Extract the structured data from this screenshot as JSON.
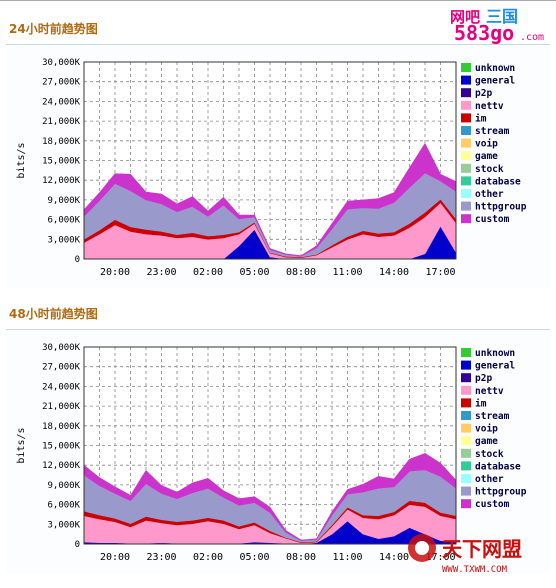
{
  "header_logo": {
    "line1": "网吧",
    "line2": "583go",
    "suffix": ".com",
    "accent": "#e4007f",
    "accent2": "#1e8de1"
  },
  "footer_logo": {
    "brand": "天下网盟",
    "url": "WWW.TXWM.COM",
    "color": "#c8100e"
  },
  "chart_data": [
    {
      "type": "area",
      "title": "24小时前趋势图",
      "ylabel": "bits/s",
      "xlabel": "",
      "ylim": [
        0,
        30000
      ],
      "yticks": [
        "0",
        "3,000K",
        "6,000K",
        "9,000K",
        "12,000K",
        "15,000K",
        "18,000K",
        "21,000K",
        "24,000K",
        "27,000K",
        "30,000K"
      ],
      "xticks": [
        "20:00",
        "23:00",
        "02:00",
        "05:00",
        "08:00",
        "11:00",
        "14:00",
        "17:00"
      ],
      "grid": true,
      "legend_position": "right",
      "legend": [
        {
          "name": "unknown",
          "color": "#33cc33"
        },
        {
          "name": "general",
          "color": "#0000cc"
        },
        {
          "name": "p2p",
          "color": "#330099"
        },
        {
          "name": "nettv",
          "color": "#ff99cc"
        },
        {
          "name": "im",
          "color": "#cc0000"
        },
        {
          "name": "stream",
          "color": "#3399cc"
        },
        {
          "name": "voip",
          "color": "#ffcc66"
        },
        {
          "name": "game",
          "color": "#ffff99"
        },
        {
          "name": "stock",
          "color": "#99cc99"
        },
        {
          "name": "database",
          "color": "#33cc99"
        },
        {
          "name": "other",
          "color": "#99ffff"
        },
        {
          "name": "httpgroup",
          "color": "#9999cc"
        },
        {
          "name": "custom",
          "color": "#cc33cc"
        }
      ],
      "x": [
        "18:00",
        "19:00",
        "20:00",
        "21:00",
        "22:00",
        "23:00",
        "00:00",
        "01:00",
        "02:00",
        "03:00",
        "04:00",
        "05:00",
        "06:00",
        "07:00",
        "08:00",
        "09:00",
        "10:00",
        "11:00",
        "12:00",
        "13:00",
        "14:00",
        "15:00",
        "16:00",
        "17:00",
        "17:30"
      ],
      "series": [
        {
          "name": "general",
          "values": [
            0,
            0,
            0,
            0,
            0,
            0,
            0,
            0,
            0,
            0,
            2000,
            4500,
            300,
            0,
            0,
            0,
            0,
            0,
            0,
            0,
            0,
            0,
            800,
            5000,
            1000
          ]
        },
        {
          "name": "nettv",
          "values": [
            2500,
            3800,
            5200,
            4200,
            3800,
            3600,
            3200,
            3400,
            3000,
            3200,
            1800,
            900,
            600,
            300,
            200,
            600,
            1800,
            3000,
            3800,
            3400,
            3600,
            4800,
            5600,
            3600,
            4500
          ]
        },
        {
          "name": "im",
          "values": [
            500,
            600,
            800,
            700,
            700,
            600,
            500,
            600,
            500,
            500,
            300,
            200,
            100,
            100,
            100,
            100,
            300,
            400,
            500,
            500,
            500,
            600,
            700,
            500,
            600
          ]
        },
        {
          "name": "httpgroup",
          "values": [
            3500,
            4500,
            5500,
            5500,
            4500,
            4200,
            3500,
            4000,
            3000,
            4500,
            2000,
            800,
            400,
            300,
            100,
            1000,
            2500,
            4200,
            3500,
            3800,
            4500,
            5500,
            6000,
            2800,
            4200
          ]
        },
        {
          "name": "custom",
          "values": [
            1000,
            1200,
            1500,
            2500,
            1200,
            1500,
            1200,
            1500,
            800,
            1200,
            600,
            300,
            200,
            100,
            100,
            300,
            800,
            1200,
            1200,
            1500,
            1500,
            3000,
            4500,
            1000,
            1500
          ]
        }
      ]
    },
    {
      "type": "area",
      "title": "48小时前趋势图",
      "ylabel": "bits/s",
      "xlabel": "",
      "ylim": [
        0,
        30000
      ],
      "yticks": [
        "0",
        "3,000K",
        "6,000K",
        "9,000K",
        "12,000K",
        "15,000K",
        "18,000K",
        "21,000K",
        "24,000K",
        "27,000K",
        "30,000K"
      ],
      "xticks": [
        "20:00",
        "23:00",
        "02:00",
        "05:00",
        "08:00",
        "11:00",
        "14:00",
        "17:00"
      ],
      "grid": true,
      "legend_position": "right",
      "legend": [
        {
          "name": "unknown",
          "color": "#33cc33"
        },
        {
          "name": "general",
          "color": "#0000cc"
        },
        {
          "name": "p2p",
          "color": "#330099"
        },
        {
          "name": "nettv",
          "color": "#ff99cc"
        },
        {
          "name": "im",
          "color": "#cc0000"
        },
        {
          "name": "stream",
          "color": "#3399cc"
        },
        {
          "name": "voip",
          "color": "#ffcc66"
        },
        {
          "name": "game",
          "color": "#ffff99"
        },
        {
          "name": "stock",
          "color": "#99cc99"
        },
        {
          "name": "database",
          "color": "#33cc99"
        },
        {
          "name": "other",
          "color": "#99ffff"
        },
        {
          "name": "httpgroup",
          "color": "#9999cc"
        },
        {
          "name": "custom",
          "color": "#cc33cc"
        }
      ],
      "x": [
        "18:00",
        "19:00",
        "20:00",
        "21:00",
        "22:00",
        "23:00",
        "00:00",
        "01:00",
        "02:00",
        "03:00",
        "04:00",
        "05:00",
        "06:00",
        "07:00",
        "08:00",
        "09:00",
        "10:00",
        "11:00",
        "12:00",
        "13:00",
        "14:00",
        "15:00",
        "16:00",
        "17:00",
        "17:30"
      ],
      "series": [
        {
          "name": "general",
          "values": [
            300,
            200,
            200,
            100,
            100,
            200,
            100,
            100,
            100,
            100,
            100,
            300,
            200,
            100,
            0,
            200,
            1500,
            3500,
            1500,
            800,
            1200,
            2500,
            1500,
            500,
            300
          ]
        },
        {
          "name": "nettv",
          "values": [
            4000,
            3600,
            3200,
            2500,
            3500,
            3000,
            2800,
            3000,
            3400,
            3000,
            2200,
            2600,
            1500,
            800,
            200,
            100,
            1200,
            1800,
            2500,
            3000,
            3200,
            3500,
            4200,
            3800,
            3500
          ]
        },
        {
          "name": "im",
          "values": [
            700,
            600,
            500,
            500,
            600,
            500,
            500,
            500,
            500,
            500,
            400,
            400,
            300,
            100,
            100,
            100,
            200,
            300,
            400,
            500,
            500,
            600,
            600,
            500,
            500
          ]
        },
        {
          "name": "httpgroup",
          "values": [
            5500,
            4500,
            3800,
            3500,
            5000,
            4000,
            3500,
            4200,
            4500,
            3500,
            3200,
            3000,
            2800,
            800,
            200,
            300,
            1500,
            2000,
            3500,
            4200,
            3800,
            4500,
            5000,
            5500,
            4200
          ]
        },
        {
          "name": "custom",
          "values": [
            1500,
            1200,
            1000,
            800,
            2000,
            1200,
            1000,
            1500,
            1500,
            1000,
            1000,
            900,
            800,
            300,
            100,
            100,
            500,
            700,
            1200,
            1800,
            1200,
            1800,
            2500,
            2000,
            1200
          ]
        }
      ]
    }
  ]
}
